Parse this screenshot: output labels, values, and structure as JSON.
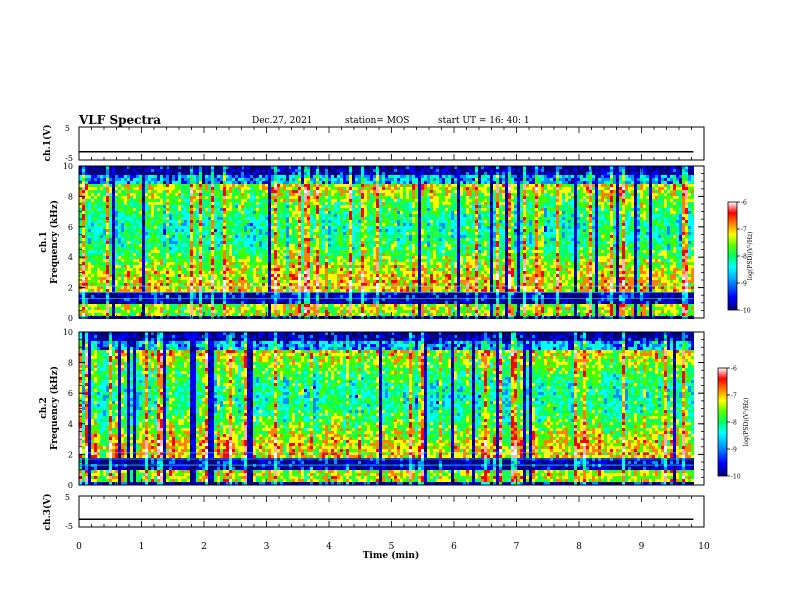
{
  "header": {
    "title": "VLF Spectra",
    "date": "Dec.27, 2021",
    "station": "station= MOS",
    "start_ut": "start  UT =   16: 40: 1"
  },
  "colors": {
    "spectrogram": [
      "#000080",
      "#0000ff",
      "#0090ff",
      "#00ffff",
      "#00ff80",
      "#40ff00",
      "#ffff00",
      "#ff8000",
      "#ff0000",
      "#ffb0b0",
      "#ffffff"
    ]
  },
  "chart_data": [
    {
      "type": "line",
      "id": "ch1v",
      "ylabel": "ch.1(V)",
      "ylim": [
        -5,
        5
      ],
      "yticks": [
        -5,
        5
      ],
      "xlim": [
        0,
        10
      ],
      "level": -2.5
    },
    {
      "type": "heatmap",
      "id": "ch1",
      "ylabel_top": "ch.1",
      "ylabel": "Frequency (kHz)",
      "ylim": [
        0,
        10
      ],
      "yticks": [
        0,
        2,
        4,
        6,
        8,
        10
      ],
      "xlim": [
        0,
        10
      ],
      "data_extent_min": 9.83,
      "colorbar": {
        "label": "log(PSD)(V²/Hz)",
        "ticks": [
          "-6",
          "-7",
          "-8",
          "-9",
          "-10"
        ],
        "range": [
          -10,
          -6
        ]
      }
    },
    {
      "type": "heatmap",
      "id": "ch2",
      "ylabel_top": "ch.2",
      "ylabel": "Frequency (kHz)",
      "ylim": [
        0,
        10
      ],
      "yticks": [
        0,
        2,
        4,
        6,
        8,
        10
      ],
      "xlim": [
        0,
        10
      ],
      "data_extent_min": 9.83,
      "colorbar": {
        "label": "log(PSD)(V²/Hz)",
        "ticks": [
          "-6",
          "-7",
          "-8",
          "-9",
          "-10"
        ],
        "range": [
          -10,
          -6
        ]
      }
    },
    {
      "type": "line",
      "id": "ch3v",
      "ylabel": "ch.3(V)",
      "ylim": [
        -5,
        5
      ],
      "yticks": [
        -5,
        5
      ],
      "xlim": [
        0,
        10
      ],
      "level": -2.5,
      "xlabel": "Time (min)",
      "xticks": [
        0,
        1,
        2,
        3,
        4,
        5,
        6,
        7,
        8,
        9,
        10
      ]
    }
  ]
}
